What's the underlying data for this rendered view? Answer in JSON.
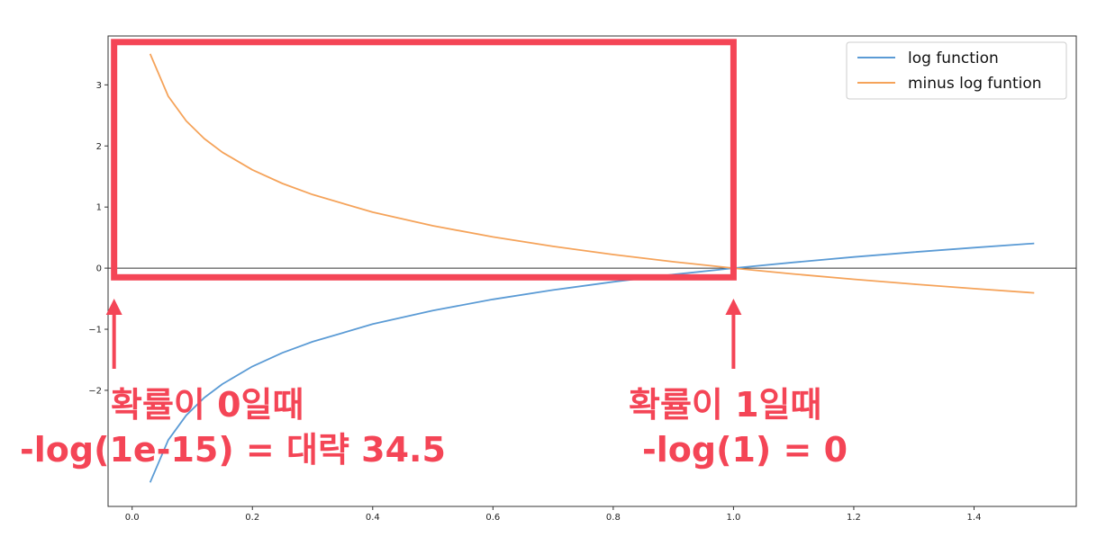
{
  "chart_data": {
    "type": "line",
    "xlim": [
      -0.04,
      1.57
    ],
    "ylim": [
      -3.9,
      3.8
    ],
    "x_ticks": [
      0.0,
      0.2,
      0.4,
      0.6,
      0.8,
      1.0,
      1.2,
      1.4
    ],
    "x_tick_labels": [
      "0.0",
      "0.2",
      "0.4",
      "0.6",
      "0.8",
      "1.0",
      "1.2",
      "1.4"
    ],
    "y_ticks": [
      -2,
      -1,
      0,
      1,
      2,
      3
    ],
    "y_tick_labels": [
      "−2",
      "−1",
      "0",
      "1",
      "2",
      "3"
    ],
    "grid": false,
    "legend_position": "top-right",
    "x": [
      0.03,
      0.06,
      0.09,
      0.12,
      0.15,
      0.2,
      0.25,
      0.3,
      0.4,
      0.5,
      0.6,
      0.7,
      0.8,
      0.9,
      1.0,
      1.1,
      1.2,
      1.3,
      1.4,
      1.5
    ],
    "series": [
      {
        "name": "log function",
        "color": "#5b9bd5",
        "values": [
          -3.507,
          -2.813,
          -2.408,
          -2.12,
          -1.897,
          -1.609,
          -1.386,
          -1.204,
          -0.916,
          -0.693,
          -0.511,
          -0.357,
          -0.223,
          -0.105,
          0.0,
          0.095,
          0.182,
          0.262,
          0.336,
          0.405
        ]
      },
      {
        "name": "minus log funtion",
        "color": "#f5a35a",
        "values": [
          3.507,
          2.813,
          2.408,
          2.12,
          1.897,
          1.609,
          1.386,
          1.204,
          0.916,
          0.693,
          0.511,
          0.357,
          0.223,
          0.105,
          0.0,
          -0.095,
          -0.182,
          -0.262,
          -0.336,
          -0.405
        ]
      }
    ],
    "highlight_box": {
      "x_range": [
        -0.03,
        1.0
      ],
      "y_range": [
        -0.15,
        3.7
      ],
      "color": "#f44556"
    },
    "annotations": [
      {
        "lines": [
          "확률이 0일때",
          "-log(1e-15) = 대략 34.5"
        ],
        "arrow_x": -0.03,
        "color": "#f44556"
      },
      {
        "lines": [
          "확률이 1일때",
          "-log(1) = 0"
        ],
        "arrow_x": 1.0,
        "color": "#f44556"
      }
    ]
  }
}
